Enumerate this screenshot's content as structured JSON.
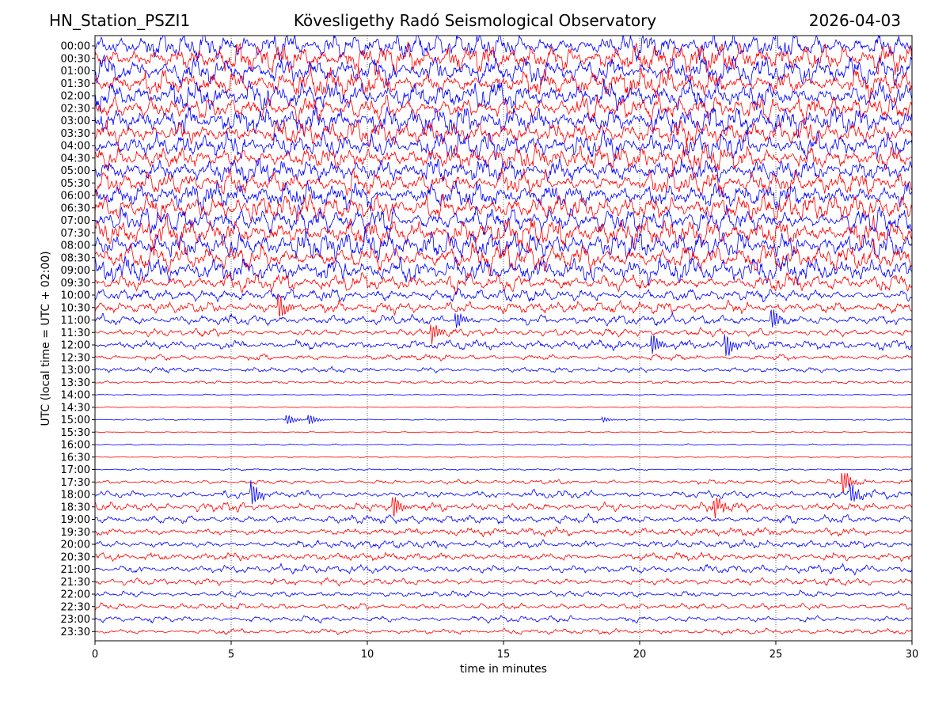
{
  "header": {
    "station": "HN_Station_PSZI1",
    "observatory": "Kövesligethy Radó Seismological Observatory",
    "date": "2026-04-03"
  },
  "chart_data": {
    "type": "line",
    "title": "Kövesligethy Radó Seismological Observatory",
    "xlabel": "time in minutes",
    "ylabel": "UTC (local time = UTC + 02:00)",
    "xlim": [
      0,
      30
    ],
    "x_ticks": [
      "0",
      "5",
      "10",
      "15",
      "20",
      "25",
      "30"
    ],
    "x_tick_values": [
      0,
      5,
      10,
      15,
      20,
      25,
      30
    ],
    "grid": "vertical dotted at x ticks",
    "row_labels": [
      "00:00",
      "00:30",
      "01:00",
      "01:30",
      "02:00",
      "02:30",
      "03:00",
      "03:30",
      "04:00",
      "04:30",
      "05:00",
      "05:30",
      "06:00",
      "06:30",
      "07:00",
      "07:30",
      "08:00",
      "08:30",
      "09:00",
      "09:30",
      "10:00",
      "10:30",
      "11:00",
      "11:30",
      "12:00",
      "12:30",
      "13:00",
      "13:30",
      "14:00",
      "14:30",
      "15:00",
      "15:30",
      "16:00",
      "16:30",
      "17:00",
      "17:30",
      "18:00",
      "18:30",
      "19:00",
      "19:30",
      "20:00",
      "20:30",
      "21:00",
      "21:30",
      "22:00",
      "22:30",
      "23:00",
      "23:30"
    ],
    "row_colors": [
      "#0000ff",
      "#ff0000"
    ],
    "row_activity": [
      3.2,
      3.2,
      3.0,
      3.0,
      3.0,
      3.0,
      3.0,
      2.9,
      2.9,
      2.8,
      2.5,
      2.6,
      2.7,
      2.8,
      2.9,
      3.0,
      3.0,
      2.9,
      2.8,
      2.0,
      1.4,
      1.2,
      1.1,
      0.9,
      1.0,
      0.7,
      0.6,
      0.3,
      0.12,
      0.12,
      0.15,
      0.12,
      0.15,
      0.12,
      0.2,
      0.5,
      0.9,
      1.0,
      0.9,
      0.9,
      0.8,
      0.8,
      0.9,
      0.8,
      0.7,
      0.7,
      0.7,
      0.6
    ],
    "events": [
      {
        "row": 30,
        "minute": 7.1,
        "amp": 6
      },
      {
        "row": 30,
        "minute": 7.9,
        "amp": 6
      },
      {
        "row": 30,
        "minute": 18.7,
        "amp": 3
      },
      {
        "row": 35,
        "minute": 27.5,
        "amp": 14
      },
      {
        "row": 36,
        "minute": 5.8,
        "amp": 14
      },
      {
        "row": 36,
        "minute": 27.8,
        "amp": 12
      },
      {
        "row": 37,
        "minute": 11.0,
        "amp": 12
      },
      {
        "row": 37,
        "minute": 22.8,
        "amp": 12
      },
      {
        "row": 22,
        "minute": 13.3,
        "amp": 10
      },
      {
        "row": 23,
        "minute": 12.4,
        "amp": 12
      },
      {
        "row": 24,
        "minute": 20.5,
        "amp": 12
      },
      {
        "row": 24,
        "minute": 23.2,
        "amp": 14
      },
      {
        "row": 21,
        "minute": 6.8,
        "amp": 14
      },
      {
        "row": 22,
        "minute": 24.9,
        "amp": 12
      }
    ]
  }
}
